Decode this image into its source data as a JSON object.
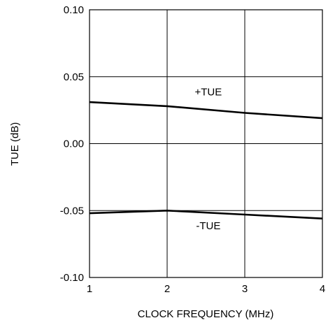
{
  "chart_data": {
    "type": "line",
    "title": "",
    "xlabel": "CLOCK FREQUENCY (MHz)",
    "ylabel": "TUE (dB)",
    "xlim": [
      1,
      4
    ],
    "ylim": [
      -0.1,
      0.1
    ],
    "x_ticks": [
      1,
      2,
      3,
      4
    ],
    "x_tick_labels": [
      "1",
      "2",
      "3",
      "4"
    ],
    "y_ticks": [
      0.1,
      0.05,
      0.0,
      -0.05,
      -0.1
    ],
    "y_tick_labels": [
      "0.10",
      "0.05",
      "0.00",
      "-0.05",
      "-0.10"
    ],
    "grid": true,
    "legend": "none",
    "series": [
      {
        "name": "+TUE",
        "x": [
          1,
          2,
          3,
          4
        ],
        "y": [
          0.031,
          0.028,
          0.023,
          0.019
        ]
      },
      {
        "name": "-TUE",
        "x": [
          1,
          2,
          3,
          4
        ],
        "y": [
          -0.052,
          -0.05,
          -0.053,
          -0.056
        ]
      }
    ],
    "annotations": [
      {
        "text": "+TUE",
        "x": 2.53,
        "y": 0.036
      },
      {
        "text": "-TUE",
        "x": 2.53,
        "y": -0.064
      }
    ],
    "line_color": "#000000",
    "grid_color": "#000000"
  }
}
